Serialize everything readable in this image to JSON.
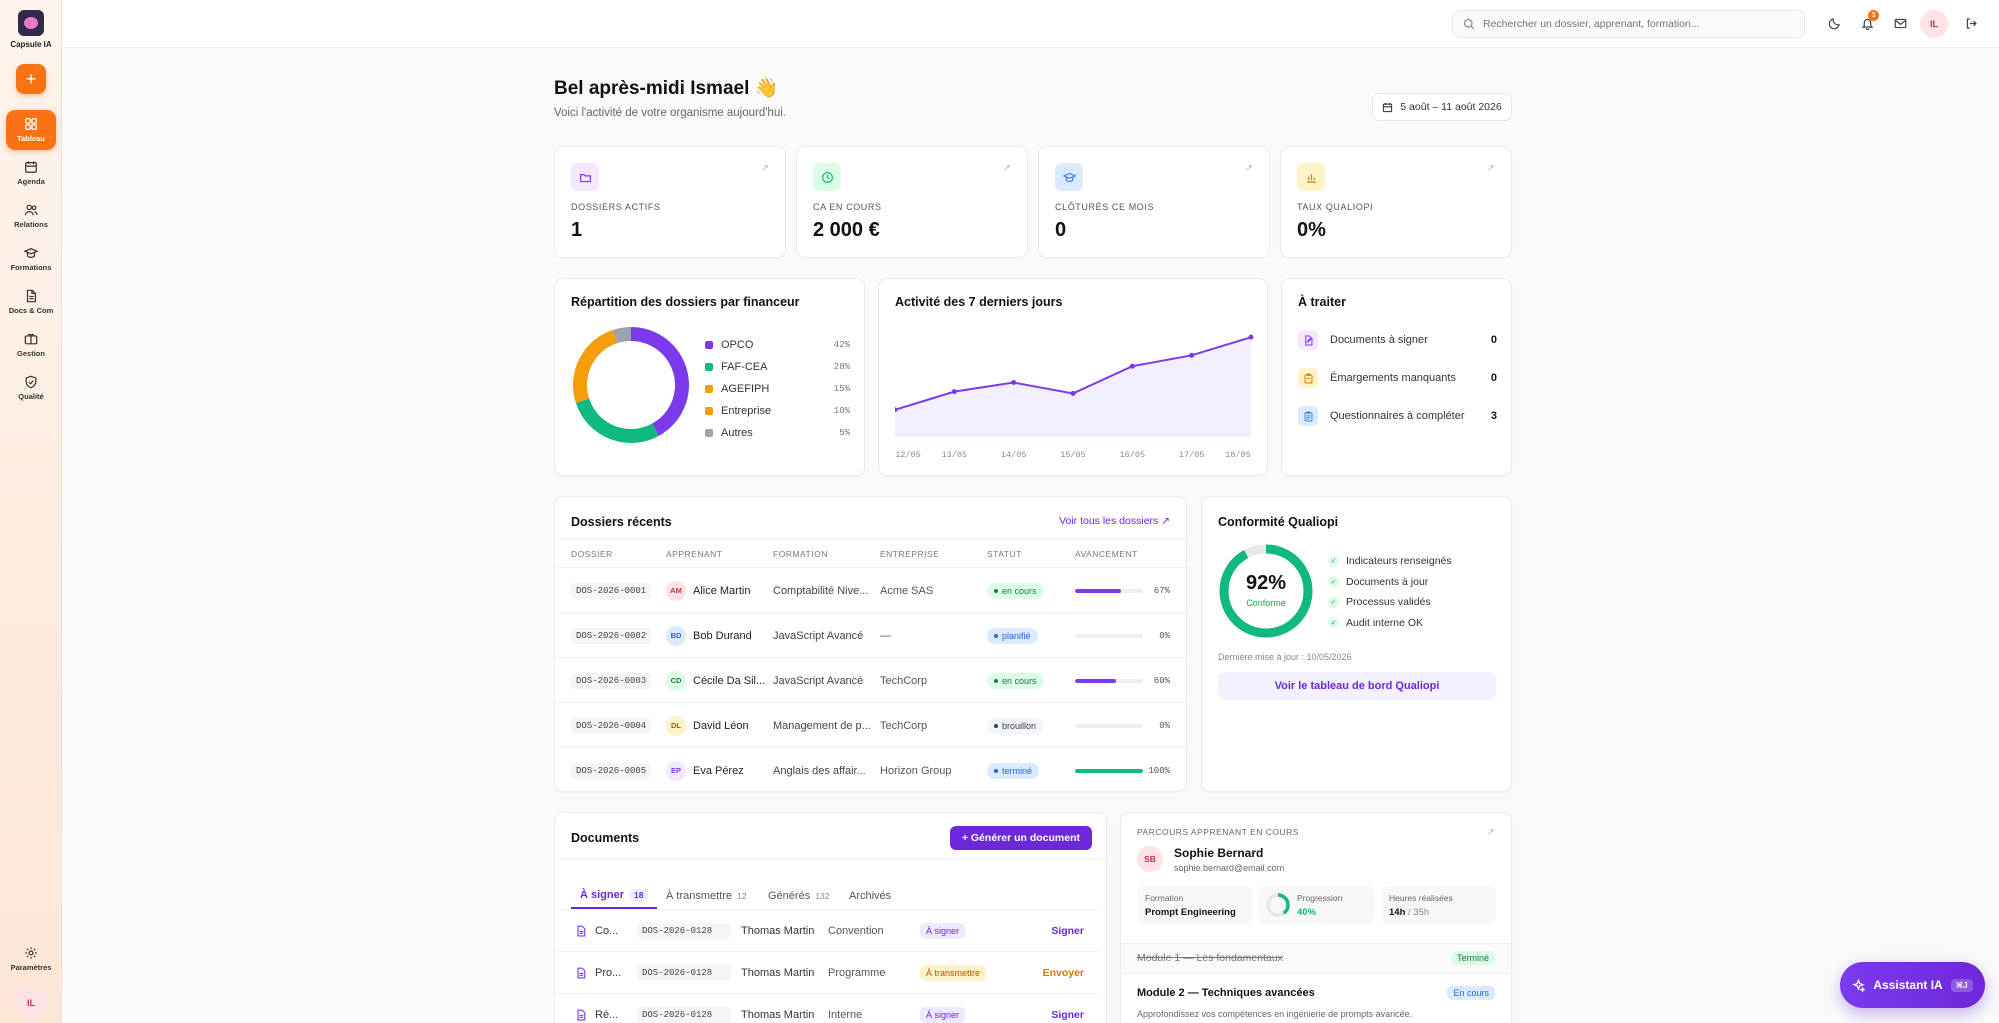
{
  "app": {
    "name": "Capsule IA",
    "user_initials": "IL"
  },
  "sidebar": {
    "items": [
      {
        "label": "Tableau",
        "icon": "dashboard-icon",
        "active": true
      },
      {
        "label": "Agenda",
        "icon": "calendar-icon"
      },
      {
        "label": "Relations",
        "icon": "users-icon"
      },
      {
        "label": "Formations",
        "icon": "graduation-cap-icon"
      },
      {
        "label": "Docs & Com",
        "icon": "document-icon"
      },
      {
        "label": "Gestion",
        "icon": "briefcase-icon"
      },
      {
        "label": "Qualité",
        "icon": "shield-check-icon"
      }
    ],
    "settings_label": "Paramètres"
  },
  "topbar": {
    "search_placeholder": "Rechercher un dossier, apprenant, formation...",
    "notification_count": "3"
  },
  "header": {
    "greeting": "Bel après-midi Ismael 👋",
    "subtitle": "Voici l'activité de votre organisme aujourd'hui.",
    "date_range": "5 août – 11 août 2026"
  },
  "stats": [
    {
      "label": "DOSSIERS ACTIFS",
      "value": "1",
      "icon": "folder-icon",
      "color": "#7c3aed",
      "bg": "#f3e8ff"
    },
    {
      "label": "CA EN COURS",
      "value": "2 000 €",
      "icon": "clock-icon",
      "color": "#10b981",
      "bg": "#dcfce7"
    },
    {
      "label": "CLÔTURÉS CE MOIS",
      "value": "0",
      "icon": "graduation-cap-icon",
      "color": "#3b82f6",
      "bg": "#dbeafe"
    },
    {
      "label": "TAUX QUALIOPI",
      "value": "0%",
      "icon": "bar-chart-icon",
      "color": "#d97706",
      "bg": "#fef3c7"
    }
  ],
  "funder_chart": {
    "title": "Répartition des dossiers par financeur",
    "slices": [
      {
        "name": "OPCO",
        "pct_label": "42%",
        "value": 42,
        "color": "#7c3aed"
      },
      {
        "name": "FAF-CEA",
        "pct_label": "28%",
        "value": 28,
        "color": "#10b981"
      },
      {
        "name": "AGEFIPH",
        "pct_label": "15%",
        "value": 15,
        "color": "#f59e0b"
      },
      {
        "name": "Entreprise",
        "pct_label": "10%",
        "value": 10,
        "color": "#f59e0b"
      },
      {
        "name": "Autres",
        "pct_label": "5%",
        "value": 5,
        "color": "#9ca3af"
      }
    ]
  },
  "chart_data": {
    "type": "area",
    "title": "Activité des 7 derniers jours",
    "categories": [
      "12/05",
      "13/05",
      "14/05",
      "15/05",
      "16/05",
      "17/05",
      "18/05"
    ],
    "values": [
      3,
      5,
      6,
      4.8,
      7.8,
      9,
      11
    ],
    "ylim": [
      0,
      13
    ],
    "color": "#7c3aed"
  },
  "todo": {
    "title": "À traiter",
    "items": [
      {
        "label": "Documents à signer",
        "count": "0",
        "icon": "file-pen-icon",
        "color": "#7c3aed",
        "bg": "#f3e8ff"
      },
      {
        "label": "Émargements manquants",
        "count": "0",
        "icon": "clipboard-icon",
        "color": "#d97706",
        "bg": "#fef3c7"
      },
      {
        "label": "Questionnaires à compléter",
        "count": "3",
        "icon": "clipboard-list-icon",
        "color": "#3b82f6",
        "bg": "#dbeafe"
      }
    ]
  },
  "recent": {
    "title": "Dossiers récents",
    "see_all": "Voir tous les dossiers ↗",
    "columns": [
      "DOSSIER",
      "APPRENANT",
      "FORMATION",
      "ENTREPRISE",
      "STATUT",
      "AVANCEMENT"
    ],
    "rows": [
      {
        "code": "DOS-2026-0001",
        "initials": "AM",
        "learner": "Alice Martin",
        "training": "Comptabilité Nive...",
        "company": "Acme SAS",
        "status": "en cours",
        "progress": 67,
        "pct": "67%",
        "av_bg": "#fde2e6",
        "av_fg": "#c0304a",
        "st_bg": "#dcfce7",
        "st_fg": "#15803d",
        "bar": "#7c3aed"
      },
      {
        "code": "DOS-2026-0002",
        "initials": "BD",
        "learner": "Bob Durand",
        "training": "JavaScript Avancé",
        "company": "—",
        "status": "planifié",
        "progress": 0,
        "pct": "0%",
        "av_bg": "#dbeafe",
        "av_fg": "#2563eb",
        "st_bg": "#dbeafe",
        "st_fg": "#2563eb",
        "bar": "#7c3aed"
      },
      {
        "code": "DOS-2026-0003",
        "initials": "CD",
        "learner": "Cécile Da Sil...",
        "training": "JavaScript Avancé",
        "company": "TechCorp",
        "status": "en cours",
        "progress": 60,
        "pct": "60%",
        "av_bg": "#dcfce7",
        "av_fg": "#15803d",
        "st_bg": "#dcfce7",
        "st_fg": "#15803d",
        "bar": "#7c3aed"
      },
      {
        "code": "DOS-2026-0004",
        "initials": "DL",
        "learner": "David Léon",
        "training": "Management de p...",
        "company": "TechCorp",
        "status": "brouillon",
        "progress": 0,
        "pct": "0%",
        "av_bg": "#fef3c7",
        "av_fg": "#b45309",
        "st_bg": "#f3f4f6",
        "st_fg": "#374151",
        "bar": "#7c3aed"
      },
      {
        "code": "DOS-2026-0005",
        "initials": "EP",
        "learner": "Eva Pérez",
        "training": "Anglais des affair...",
        "company": "Horizon Group",
        "status": "terminé",
        "progress": 100,
        "pct": "100%",
        "av_bg": "#f3e8ff",
        "av_fg": "#7c3aed",
        "st_bg": "#dbeafe",
        "st_fg": "#2563eb",
        "bar": "#10b981"
      }
    ]
  },
  "qualiopi": {
    "title": "Conformité Qualiopi",
    "score": "92%",
    "score_value": 92,
    "score_label": "Conforme",
    "checks": [
      "Indicateurs renseignés",
      "Documents à jour",
      "Processus validés",
      "Audit interne OK"
    ],
    "updated": "Dernière mise à jour : 10/05/2026",
    "button": "Voir le tableau de bord Qualiopi"
  },
  "documents": {
    "title": "Documents",
    "generate": "+ Générer un document",
    "tabs": [
      {
        "label": "À signer",
        "count": "18",
        "active": true
      },
      {
        "label": "À transmettre",
        "count": "12"
      },
      {
        "label": "Générés",
        "count": "132"
      },
      {
        "label": "Archivés",
        "count": ""
      }
    ],
    "rows": [
      {
        "name": "Co...",
        "code": "DOS-2026-0128",
        "person": "Thomas Martin",
        "type": "Convention",
        "status": "À signer",
        "action": "Signer",
        "st_bg": "#ede9fe",
        "st_fg": "#6d28d9",
        "act": "#6d28d9"
      },
      {
        "name": "Pro...",
        "code": "DOS-2026-0128",
        "person": "Thomas Martin",
        "type": "Programme",
        "status": "À transmettre",
        "action": "Envoyer",
        "st_bg": "#fef3c7",
        "st_fg": "#b45309",
        "act": "#d97706"
      },
      {
        "name": "Rè...",
        "code": "DOS-2026-0128",
        "person": "Thomas Martin",
        "type": "Interne",
        "status": "À signer",
        "action": "Signer",
        "st_bg": "#ede9fe",
        "st_fg": "#6d28d9",
        "act": "#6d28d9"
      }
    ]
  },
  "learner": {
    "section": "PARCOURS APPRENANT EN COURS",
    "initials": "SB",
    "name": "Sophie Bernard",
    "email": "sophie.bernard@email.com",
    "formation_label": "Formation",
    "formation": "Prompt Engineering",
    "progress_label": "Progression",
    "progress": "40%",
    "progress_value": 40,
    "hours_label": "Heures réalisées",
    "hours_done": "14h",
    "hours_total": "/ 35h",
    "modules": [
      {
        "title": "Module 1 — Les fondamentaux",
        "badge": "Terminé"
      },
      {
        "title": "Module 2 — Techniques avancées",
        "badge": "En cours",
        "desc": "Approfondissez vos compétences en ingénierie de prompts avancée."
      }
    ]
  },
  "assistant": {
    "label": "Assistant IA",
    "shortcut": "⌘J"
  }
}
